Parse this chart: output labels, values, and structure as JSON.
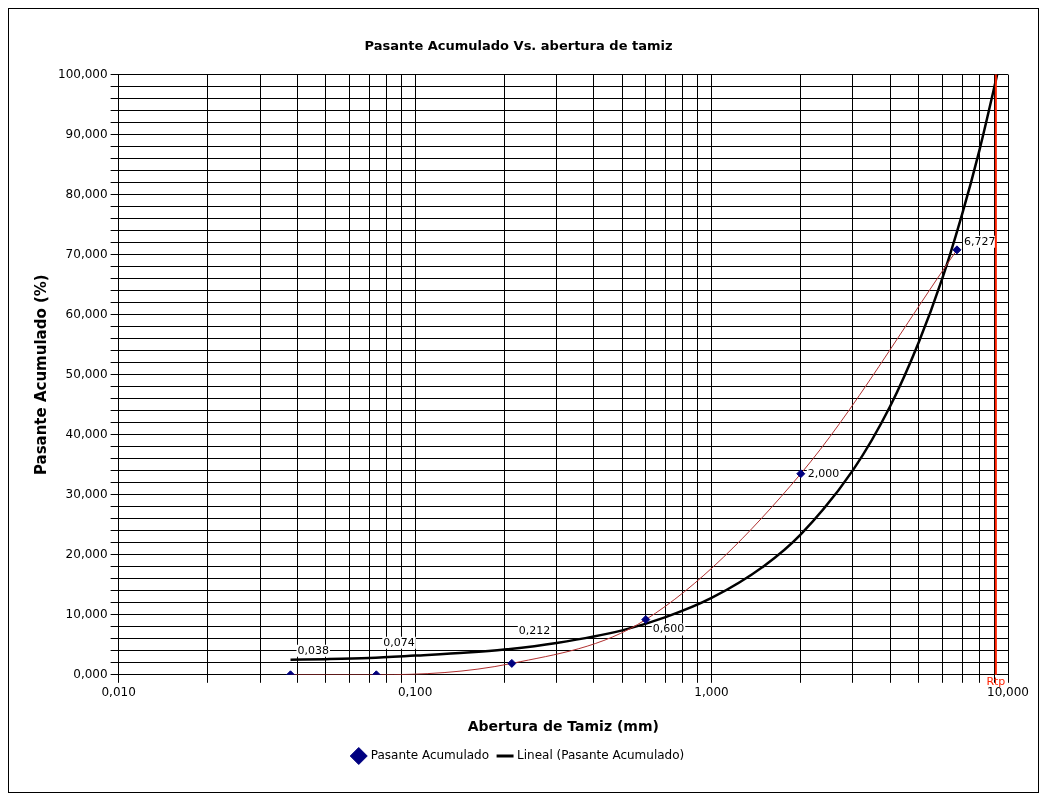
{
  "chart_data": {
    "type": "line",
    "title": "Pasante Acumulado Vs. abertura de tamiz",
    "xlabel": "Abertura de Tamiz (mm)",
    "ylabel": "Pasante Acumulado (%)",
    "x": [
      0.038,
      0.074,
      0.212,
      0.6,
      2.0,
      6.727
    ],
    "series": [
      {
        "name": "Pasante Acumulado",
        "type": "line",
        "color": "#b03030",
        "colors": [
          "#000080",
          "#000080",
          "#000080",
          "#000080",
          "#000080",
          "#000080"
        ],
        "marker": "diamond",
        "values": [
          0,
          0,
          1.9,
          9.2,
          33.5,
          70.8
        ]
      },
      {
        "name": "Lineal (Pasante Acumulado)",
        "type": "line",
        "color": "#000000",
        "marker": "none",
        "x": [
          0.038,
          0.05,
          0.07,
          0.1,
          0.15,
          0.2,
          0.3,
          0.5,
          0.7,
          1,
          1.5,
          2,
          3,
          4,
          5,
          6,
          7,
          8,
          9,
          9.19
        ],
        "values": [
          2.5,
          2.6,
          2.8,
          3.2,
          3.7,
          4.2,
          5.3,
          7.4,
          9.6,
          12.8,
          18.1,
          23.4,
          34.1,
          44.7,
          55.4,
          66.0,
          76.7,
          87.3,
          98.0,
          100.0
        ]
      }
    ],
    "log": "x",
    "xlim": [
      0.01,
      10
    ],
    "xticks": [
      {
        "value": 0.01,
        "label": "0,010"
      },
      {
        "value": 0.02,
        "label": null
      },
      {
        "value": 0.03,
        "label": null
      },
      {
        "value": 0.04,
        "label": null
      },
      {
        "value": 0.05,
        "label": null
      },
      {
        "value": 0.06,
        "label": null
      },
      {
        "value": 0.07,
        "label": null
      },
      {
        "value": 0.08,
        "label": null
      },
      {
        "value": 0.09,
        "label": null
      },
      {
        "value": 0.1,
        "label": "0,100"
      },
      {
        "value": 0.2,
        "label": null
      },
      {
        "value": 0.3,
        "label": null
      },
      {
        "value": 0.4,
        "label": null
      },
      {
        "value": 0.5,
        "label": null
      },
      {
        "value": 0.6,
        "label": null
      },
      {
        "value": 0.7,
        "label": null
      },
      {
        "value": 0.8,
        "label": null
      },
      {
        "value": 0.9,
        "label": null
      },
      {
        "value": 1,
        "label": "1,000"
      },
      {
        "value": 2,
        "label": null
      },
      {
        "value": 3,
        "label": null
      },
      {
        "value": 4,
        "label": null
      },
      {
        "value": 5,
        "label": null
      },
      {
        "value": 6,
        "label": null
      },
      {
        "value": 7,
        "label": null
      },
      {
        "value": 8,
        "label": null
      },
      {
        "value": 9,
        "label": null
      },
      {
        "value": 10,
        "label": "10,000"
      }
    ],
    "ylim": [
      0,
      100
    ],
    "yticks": [
      {
        "value": 0,
        "label": "0,000"
      },
      {
        "value": 2,
        "label": null
      },
      {
        "value": 4,
        "label": null
      },
      {
        "value": 6,
        "label": null
      },
      {
        "value": 8,
        "label": null
      },
      {
        "value": 10,
        "label": "10,000"
      },
      {
        "value": 12,
        "label": null
      },
      {
        "value": 14,
        "label": null
      },
      {
        "value": 16,
        "label": null
      },
      {
        "value": 18,
        "label": null
      },
      {
        "value": 20,
        "label": "20,000"
      },
      {
        "value": 22,
        "label": null
      },
      {
        "value": 24,
        "label": null
      },
      {
        "value": 26,
        "label": null
      },
      {
        "value": 28,
        "label": null
      },
      {
        "value": 30,
        "label": "30,000"
      },
      {
        "value": 32,
        "label": null
      },
      {
        "value": 34,
        "label": null
      },
      {
        "value": 36,
        "label": null
      },
      {
        "value": 38,
        "label": null
      },
      {
        "value": 40,
        "label": "40,000"
      },
      {
        "value": 42,
        "label": null
      },
      {
        "value": 44,
        "label": null
      },
      {
        "value": 46,
        "label": null
      },
      {
        "value": 48,
        "label": null
      },
      {
        "value": 50,
        "label": "50,000"
      },
      {
        "value": 52,
        "label": null
      },
      {
        "value": 54,
        "label": null
      },
      {
        "value": 56,
        "label": null
      },
      {
        "value": 58,
        "label": null
      },
      {
        "value": 60,
        "label": "60,000"
      },
      {
        "value": 62,
        "label": null
      },
      {
        "value": 64,
        "label": null
      },
      {
        "value": 66,
        "label": null
      },
      {
        "value": 68,
        "label": null
      },
      {
        "value": 70,
        "label": "70,000"
      },
      {
        "value": 72,
        "label": null
      },
      {
        "value": 74,
        "label": null
      },
      {
        "value": 76,
        "label": null
      },
      {
        "value": 78,
        "label": null
      },
      {
        "value": 80,
        "label": "80,000"
      },
      {
        "value": 82,
        "label": null
      },
      {
        "value": 84,
        "label": null
      },
      {
        "value": 86,
        "label": null
      },
      {
        "value": 88,
        "label": null
      },
      {
        "value": 90,
        "label": "90,000"
      },
      {
        "value": 92,
        "label": null
      },
      {
        "value": 94,
        "label": null
      },
      {
        "value": 96,
        "label": null
      },
      {
        "value": 98,
        "label": null
      },
      {
        "value": 100,
        "label": "100,000"
      }
    ],
    "ref_lines": [
      {
        "axis": "x",
        "value": 9.1,
        "label": "Rtp",
        "color": "#ff2000"
      }
    ],
    "annotations": [
      {
        "text": "0,038",
        "x": 0.038,
        "y": 0
      },
      {
        "text": "0,074",
        "x": 0.074,
        "y": 0
      },
      {
        "text": "0,212",
        "x": 0.212,
        "y": 1.9
      },
      {
        "text": "0,600",
        "x": 0.6,
        "y": 9.2
      },
      {
        "text": "2,000",
        "x": 2.0,
        "y": 33.5
      },
      {
        "text": "6,727",
        "x": 6.727,
        "y": 70.8
      }
    ],
    "grid": true,
    "legend": "bottom"
  }
}
